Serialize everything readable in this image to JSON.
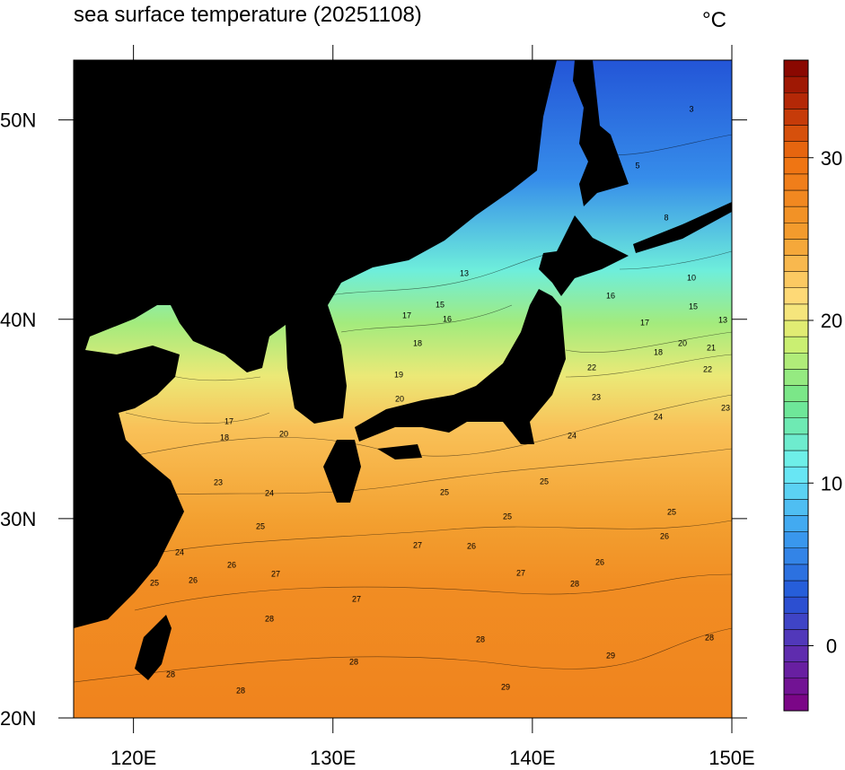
{
  "title": "sea surface temperature (20251108)",
  "unit": "°C",
  "map": {
    "xlim": [
      117,
      150
    ],
    "xticks": [
      {
        "value": 120,
        "label": "120E"
      },
      {
        "value": 130,
        "label": "130E"
      },
      {
        "value": 140,
        "label": "140E"
      },
      {
        "value": 150,
        "label": "150E"
      }
    ],
    "ylim": [
      20,
      53
    ],
    "yticks": [
      {
        "value": 20,
        "label": "20N"
      },
      {
        "value": 30,
        "label": "30N"
      },
      {
        "value": 40,
        "label": "40N"
      },
      {
        "value": 50,
        "label": "50N"
      }
    ]
  },
  "colorbar": {
    "clim": [
      -4,
      36
    ],
    "ticks": [
      0,
      10,
      20,
      30
    ]
  },
  "contour_labels": [
    13,
    17,
    15,
    16,
    18,
    19,
    20,
    17,
    18,
    20,
    23,
    24,
    25,
    26,
    26,
    25,
    24,
    27,
    25,
    25,
    26,
    27,
    27,
    28,
    28,
    28,
    29,
    29,
    28,
    25,
    26,
    24,
    23,
    22,
    21,
    20,
    18,
    17,
    16,
    15,
    13,
    10,
    5,
    3,
    8,
    22,
    23,
    24,
    25,
    26,
    27,
    28,
    28,
    28
  ]
}
